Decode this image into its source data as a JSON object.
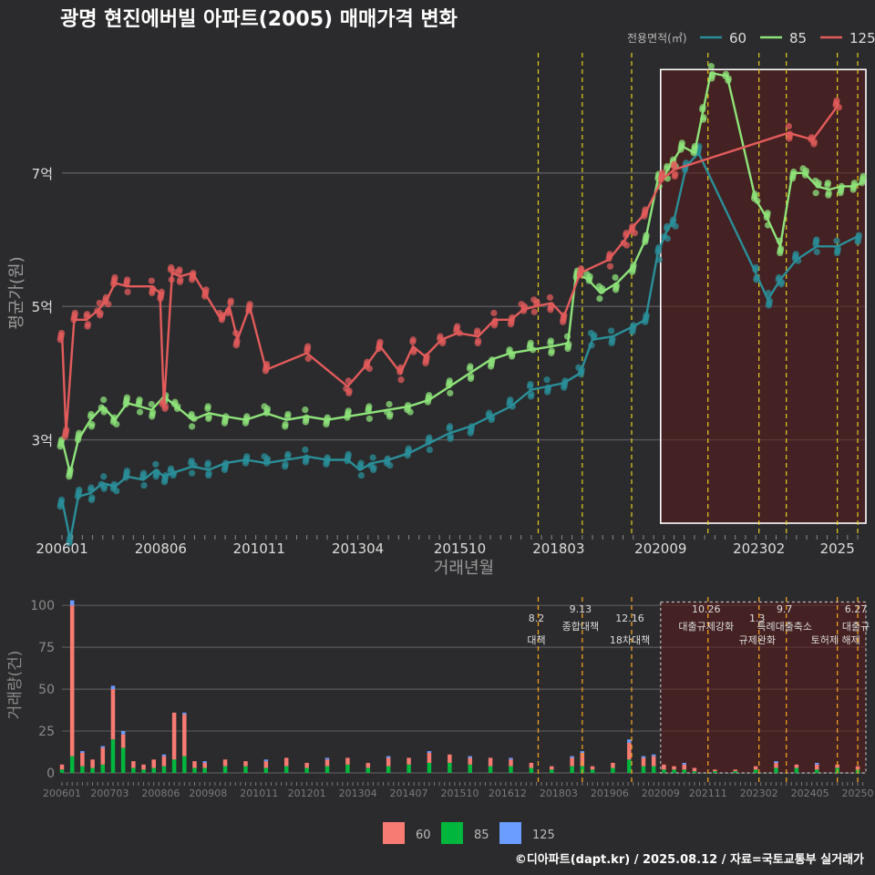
{
  "chart_data": [
    {
      "type": "line",
      "title": "광명 현진에버빌 아파트(2005) 매매가격 변화",
      "xlabel": "거래년월",
      "ylabel": "평균가(원)",
      "x_ticks": [
        "200601",
        "200806",
        "201011",
        "201304",
        "201510",
        "201803",
        "202009",
        "202302",
        "2025"
      ],
      "y_ticks": [
        {
          "v": 3,
          "label": "3억"
        },
        {
          "v": 5,
          "label": "5억"
        },
        {
          "v": 7,
          "label": "7억"
        }
      ],
      "ylim": [
        1.6,
        8.8
      ],
      "xlim": [
        2006.0,
        2025.7
      ],
      "legend": {
        "title": "전용면적(㎡)",
        "position": "top-right"
      },
      "policy_lines": [
        2017.67,
        2018.75,
        2019.96,
        2021.83,
        2023.08,
        2023.75,
        2025.0,
        2025.5
      ],
      "highlight": {
        "x0": 2020.67,
        "x1": 2025.7,
        "y0": 1.75,
        "y1": 8.55
      },
      "series": [
        {
          "name": "60",
          "color": "#2a8f99",
          "points": [
            [
              2006.0,
              2.1
            ],
            [
              2006.2,
              1.5
            ],
            [
              2006.4,
              2.15
            ],
            [
              2006.7,
              2.2
            ],
            [
              2007.0,
              2.35
            ],
            [
              2007.3,
              2.3
            ],
            [
              2007.6,
              2.45
            ],
            [
              2008.0,
              2.4
            ],
            [
              2008.3,
              2.55
            ],
            [
              2008.5,
              2.45
            ],
            [
              2008.7,
              2.5
            ],
            [
              2009.2,
              2.6
            ],
            [
              2009.6,
              2.55
            ],
            [
              2010.0,
              2.65
            ],
            [
              2010.5,
              2.7
            ],
            [
              2011.0,
              2.65
            ],
            [
              2011.5,
              2.7
            ],
            [
              2012.0,
              2.75
            ],
            [
              2012.5,
              2.7
            ],
            [
              2013.0,
              2.7
            ],
            [
              2013.3,
              2.55
            ],
            [
              2013.6,
              2.65
            ],
            [
              2014.0,
              2.7
            ],
            [
              2014.5,
              2.8
            ],
            [
              2015.0,
              2.95
            ],
            [
              2015.5,
              3.1
            ],
            [
              2016.0,
              3.2
            ],
            [
              2016.5,
              3.35
            ],
            [
              2017.0,
              3.5
            ],
            [
              2017.5,
              3.75
            ],
            [
              2017.9,
              3.8
            ],
            [
              2018.3,
              3.85
            ],
            [
              2018.7,
              4.0
            ],
            [
              2019.0,
              4.5
            ],
            [
              2019.5,
              4.55
            ],
            [
              2020.0,
              4.7
            ],
            [
              2020.3,
              4.8
            ],
            [
              2020.6,
              5.8
            ],
            [
              2020.8,
              6.1
            ],
            [
              2021.0,
              6.3
            ],
            [
              2021.3,
              7.1
            ],
            [
              2021.6,
              7.3
            ],
            [
              2023.0,
              5.5
            ],
            [
              2023.3,
              5.1
            ],
            [
              2023.6,
              5.4
            ],
            [
              2024.0,
              5.7
            ],
            [
              2024.5,
              5.9
            ],
            [
              2025.0,
              5.9
            ],
            [
              2025.5,
              6.05
            ]
          ]
        },
        {
          "name": "85",
          "color": "#8ee37a",
          "points": [
            [
              2006.0,
              3.0
            ],
            [
              2006.2,
              2.5
            ],
            [
              2006.4,
              3.0
            ],
            [
              2006.7,
              3.3
            ],
            [
              2007.0,
              3.5
            ],
            [
              2007.3,
              3.3
            ],
            [
              2007.6,
              3.55
            ],
            [
              2007.9,
              3.5
            ],
            [
              2008.2,
              3.45
            ],
            [
              2008.5,
              3.65
            ],
            [
              2008.8,
              3.5
            ],
            [
              2009.2,
              3.3
            ],
            [
              2009.6,
              3.4
            ],
            [
              2010.0,
              3.35
            ],
            [
              2010.5,
              3.3
            ],
            [
              2011.0,
              3.4
            ],
            [
              2011.5,
              3.3
            ],
            [
              2012.0,
              3.35
            ],
            [
              2012.5,
              3.3
            ],
            [
              2013.0,
              3.35
            ],
            [
              2013.5,
              3.4
            ],
            [
              2014.0,
              3.45
            ],
            [
              2014.5,
              3.5
            ],
            [
              2015.0,
              3.6
            ],
            [
              2015.5,
              3.8
            ],
            [
              2016.0,
              4.0
            ],
            [
              2016.5,
              4.2
            ],
            [
              2017.0,
              4.3
            ],
            [
              2017.5,
              4.35
            ],
            [
              2018.0,
              4.4
            ],
            [
              2018.4,
              4.45
            ],
            [
              2018.6,
              5.5
            ],
            [
              2018.9,
              5.4
            ],
            [
              2019.2,
              5.2
            ],
            [
              2019.6,
              5.35
            ],
            [
              2020.0,
              5.6
            ],
            [
              2020.3,
              6.0
            ],
            [
              2020.6,
              6.9
            ],
            [
              2020.8,
              7.0
            ],
            [
              2021.0,
              7.2
            ],
            [
              2021.2,
              7.4
            ],
            [
              2021.5,
              7.3
            ],
            [
              2021.7,
              7.9
            ],
            [
              2021.9,
              8.5
            ],
            [
              2022.3,
              8.45
            ],
            [
              2023.0,
              6.6
            ],
            [
              2023.3,
              6.3
            ],
            [
              2023.6,
              5.9
            ],
            [
              2023.9,
              7.0
            ],
            [
              2024.2,
              7.0
            ],
            [
              2024.5,
              6.8
            ],
            [
              2024.8,
              6.75
            ],
            [
              2025.1,
              6.8
            ],
            [
              2025.4,
              6.8
            ],
            [
              2025.6,
              6.85
            ]
          ]
        },
        {
          "name": "125",
          "color": "#e35b5b",
          "points": [
            [
              2006.0,
              4.6
            ],
            [
              2006.1,
              3.1
            ],
            [
              2006.3,
              4.8
            ],
            [
              2006.6,
              4.8
            ],
            [
              2006.9,
              4.95
            ],
            [
              2007.1,
              5.1
            ],
            [
              2007.3,
              5.35
            ],
            [
              2007.6,
              5.3
            ],
            [
              2008.2,
              5.3
            ],
            [
              2008.4,
              5.2
            ],
            [
              2008.5,
              3.5
            ],
            [
              2008.7,
              5.5
            ],
            [
              2008.9,
              5.45
            ],
            [
              2009.2,
              5.5
            ],
            [
              2009.5,
              5.2
            ],
            [
              2009.9,
              4.8
            ],
            [
              2010.1,
              5.0
            ],
            [
              2010.3,
              4.5
            ],
            [
              2010.6,
              5.0
            ],
            [
              2011.0,
              4.05
            ],
            [
              2012.0,
              4.3
            ],
            [
              2013.0,
              3.8
            ],
            [
              2013.5,
              4.15
            ],
            [
              2013.8,
              4.4
            ],
            [
              2014.3,
              4.0
            ],
            [
              2014.6,
              4.4
            ],
            [
              2014.9,
              4.25
            ],
            [
              2015.3,
              4.5
            ],
            [
              2015.7,
              4.6
            ],
            [
              2016.2,
              4.55
            ],
            [
              2016.6,
              4.8
            ],
            [
              2017.0,
              4.8
            ],
            [
              2017.3,
              4.95
            ],
            [
              2017.6,
              5.0
            ],
            [
              2018.0,
              5.05
            ],
            [
              2018.3,
              4.85
            ],
            [
              2018.7,
              5.5
            ],
            [
              2019.4,
              5.7
            ],
            [
              2019.8,
              6.0
            ],
            [
              2020.0,
              6.2
            ],
            [
              2020.3,
              6.4
            ],
            [
              2020.7,
              6.9
            ],
            [
              2021.0,
              7.05
            ],
            [
              2023.8,
              7.6
            ],
            [
              2024.4,
              7.5
            ],
            [
              2025.0,
              8.0
            ]
          ]
        }
      ]
    },
    {
      "type": "bar",
      "ylabel": "거래량(건)",
      "ylim": [
        0,
        105
      ],
      "y_ticks": [
        0,
        25,
        50,
        75,
        100
      ],
      "x_ticks": [
        "200601",
        "200703",
        "200806",
        "200908",
        "201011",
        "201201",
        "201304",
        "201407",
        "201510",
        "201612",
        "201803",
        "201906",
        "202009",
        "202111",
        "202302",
        "202405",
        "20250"
      ],
      "legend": {
        "position": "bottom",
        "entries": [
          {
            "name": "60",
            "color": "#f77b72"
          },
          {
            "name": "85",
            "color": "#00b63d"
          },
          {
            "name": "125",
            "color": "#6b9cff"
          }
        ]
      },
      "policies": [
        {
          "x": 2017.67,
          "date": "8.2",
          "label": "대책"
        },
        {
          "x": 2018.75,
          "date": "9.13",
          "label": "종합대책"
        },
        {
          "x": 2019.96,
          "date": "12.16",
          "label": "18차대책"
        },
        {
          "x": 2021.83,
          "date": "10.26",
          "label": "대출규제강화"
        },
        {
          "x": 2023.08,
          "date": "1.3",
          "label": "규제완화"
        },
        {
          "x": 2023.75,
          "date": "9.7",
          "label": "특례대출축소"
        },
        {
          "x": 2025.0,
          "date": "",
          "label": "토허제 해제"
        },
        {
          "x": 2025.5,
          "date": "6.27",
          "label": "대출규"
        }
      ],
      "highlight": {
        "x0": 2020.67,
        "x1": 2025.7
      },
      "bars": [
        {
          "x": 2006.0,
          "v": [
            3,
            2,
            0
          ]
        },
        {
          "x": 2006.25,
          "v": [
            90,
            10,
            3
          ]
        },
        {
          "x": 2006.5,
          "v": [
            8,
            4,
            1
          ]
        },
        {
          "x": 2006.75,
          "v": [
            5,
            3,
            0
          ]
        },
        {
          "x": 2007.0,
          "v": [
            10,
            5,
            1
          ]
        },
        {
          "x": 2007.25,
          "v": [
            30,
            20,
            2
          ]
        },
        {
          "x": 2007.5,
          "v": [
            8,
            15,
            2
          ]
        },
        {
          "x": 2007.75,
          "v": [
            4,
            3,
            0
          ]
        },
        {
          "x": 2008.0,
          "v": [
            3,
            2,
            0
          ]
        },
        {
          "x": 2008.25,
          "v": [
            5,
            3,
            0
          ]
        },
        {
          "x": 2008.5,
          "v": [
            6,
            4,
            1
          ]
        },
        {
          "x": 2008.75,
          "v": [
            28,
            8,
            0
          ]
        },
        {
          "x": 2009.0,
          "v": [
            25,
            10,
            1
          ]
        },
        {
          "x": 2009.25,
          "v": [
            4,
            3,
            0
          ]
        },
        {
          "x": 2009.5,
          "v": [
            3,
            3,
            1
          ]
        },
        {
          "x": 2010.0,
          "v": [
            4,
            4,
            0
          ]
        },
        {
          "x": 2010.5,
          "v": [
            3,
            4,
            0
          ]
        },
        {
          "x": 2011.0,
          "v": [
            4,
            3,
            1
          ]
        },
        {
          "x": 2011.5,
          "v": [
            5,
            4,
            0
          ]
        },
        {
          "x": 2012.0,
          "v": [
            3,
            3,
            0
          ]
        },
        {
          "x": 2012.5,
          "v": [
            4,
            4,
            1
          ]
        },
        {
          "x": 2013.0,
          "v": [
            4,
            5,
            0
          ]
        },
        {
          "x": 2013.5,
          "v": [
            3,
            3,
            0
          ]
        },
        {
          "x": 2014.0,
          "v": [
            5,
            4,
            1
          ]
        },
        {
          "x": 2014.5,
          "v": [
            4,
            5,
            0
          ]
        },
        {
          "x": 2015.0,
          "v": [
            6,
            6,
            1
          ]
        },
        {
          "x": 2015.5,
          "v": [
            5,
            6,
            0
          ]
        },
        {
          "x": 2016.0,
          "v": [
            4,
            5,
            1
          ]
        },
        {
          "x": 2016.5,
          "v": [
            5,
            4,
            0
          ]
        },
        {
          "x": 2017.0,
          "v": [
            4,
            4,
            1
          ]
        },
        {
          "x": 2017.5,
          "v": [
            3,
            3,
            0
          ]
        },
        {
          "x": 2018.0,
          "v": [
            2,
            2,
            0
          ]
        },
        {
          "x": 2018.5,
          "v": [
            5,
            4,
            1
          ]
        },
        {
          "x": 2018.75,
          "v": [
            8,
            4,
            1
          ]
        },
        {
          "x": 2019.0,
          "v": [
            2,
            2,
            0
          ]
        },
        {
          "x": 2019.5,
          "v": [
            3,
            3,
            0
          ]
        },
        {
          "x": 2019.9,
          "v": [
            10,
            8,
            2
          ]
        },
        {
          "x": 2020.25,
          "v": [
            5,
            4,
            1
          ]
        },
        {
          "x": 2020.5,
          "v": [
            6,
            4,
            1
          ]
        },
        {
          "x": 2020.75,
          "v": [
            3,
            2,
            0
          ]
        },
        {
          "x": 2021.0,
          "v": [
            2,
            2,
            0
          ]
        },
        {
          "x": 2021.25,
          "v": [
            3,
            2,
            1
          ]
        },
        {
          "x": 2021.5,
          "v": [
            2,
            1,
            0
          ]
        },
        {
          "x": 2022.0,
          "v": [
            1,
            1,
            0
          ]
        },
        {
          "x": 2022.5,
          "v": [
            1,
            1,
            0
          ]
        },
        {
          "x": 2023.0,
          "v": [
            2,
            2,
            0
          ]
        },
        {
          "x": 2023.5,
          "v": [
            3,
            3,
            1
          ]
        },
        {
          "x": 2024.0,
          "v": [
            2,
            3,
            0
          ]
        },
        {
          "x": 2024.5,
          "v": [
            3,
            2,
            1
          ]
        },
        {
          "x": 2025.0,
          "v": [
            2,
            3,
            0
          ]
        },
        {
          "x": 2025.5,
          "v": [
            2,
            2,
            0
          ]
        }
      ]
    }
  ],
  "credit": "©디아파트(dapt.kr) / 2025.08.12 / 자료=국토교통부 실거래가"
}
